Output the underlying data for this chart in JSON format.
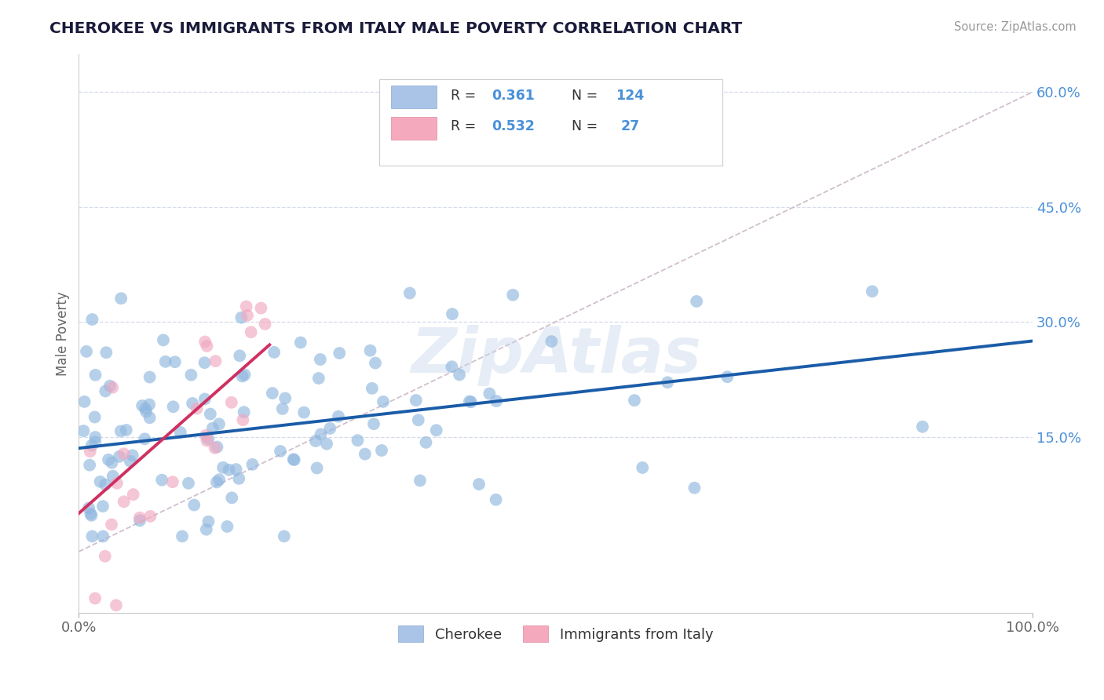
{
  "title": "CHEROKEE VS IMMIGRANTS FROM ITALY MALE POVERTY CORRELATION CHART",
  "source": "Source: ZipAtlas.com",
  "ylabel": "Male Poverty",
  "watermark": "ZipAtlas",
  "scatter_color_blue": "#90b8e0",
  "scatter_color_pink": "#f0a8c0",
  "line_color_blue": "#1a5ca8",
  "line_color_pink": "#d03060",
  "ref_line_color": "#ccb8c8",
  "title_color": "#1a1a3a",
  "axis_label_color": "#666666",
  "background_color": "#ffffff",
  "grid_color": "#d0d8e8",
  "source_color": "#999999",
  "ytick_color": "#4a90d9",
  "xlim": [
    0,
    100
  ],
  "ylim": [
    -8,
    65
  ],
  "ytick_positions": [
    15,
    30,
    45,
    60
  ],
  "ytick_labels": [
    "15.0%",
    "30.0%",
    "45.0%",
    "60.0%"
  ],
  "xtick_positions": [
    0,
    100
  ],
  "xtick_labels": [
    "0.0%",
    "100.0%"
  ],
  "blue_trend_x0": 0,
  "blue_trend_y0": 13.5,
  "blue_trend_x1": 100,
  "blue_trend_y1": 27.5,
  "pink_trend_x0": 0,
  "pink_trend_y0": 5.0,
  "pink_trend_x1": 20,
  "pink_trend_y1": 27.0,
  "ref_x0": 0,
  "ref_y0": 0,
  "ref_x1": 100,
  "ref_y1": 60,
  "n_blue": 124,
  "n_pink": 27,
  "R_blue": 0.361,
  "R_pink": 0.532,
  "scatter_size": 130,
  "scatter_alpha": 0.65
}
